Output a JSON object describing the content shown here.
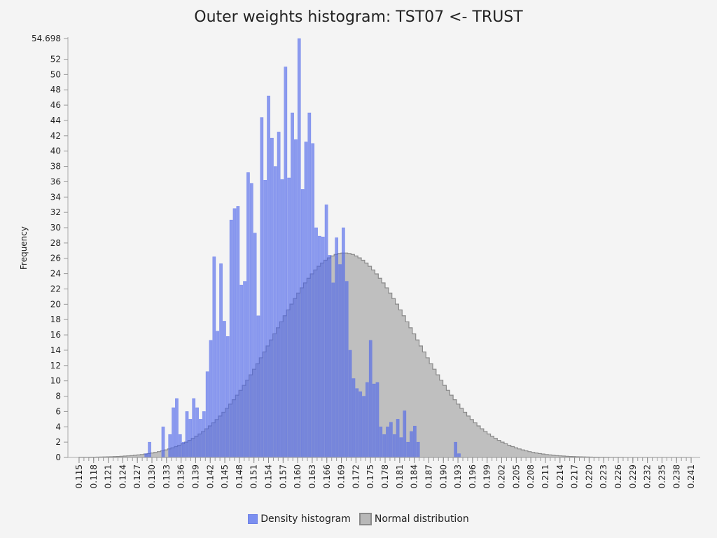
{
  "chart_data": {
    "type": "bar",
    "title": "Outer weights histogram: TST07 <- TRUST",
    "xlabel": "",
    "ylabel": "Frequency",
    "ylim": [
      0,
      54.698
    ],
    "xlim": [
      0.114,
      0.242
    ],
    "y_top_label": "54.698",
    "y_ticks": [
      0,
      2,
      4,
      6,
      8,
      10,
      12,
      14,
      16,
      18,
      20,
      22,
      24,
      26,
      28,
      30,
      32,
      34,
      36,
      38,
      40,
      42,
      44,
      46,
      48,
      50,
      52
    ],
    "x_tick_labels": [
      "0.115",
      "0.118",
      "0.121",
      "0.124",
      "0.127",
      "0.130",
      "0.133",
      "0.136",
      "0.139",
      "0.142",
      "0.145",
      "0.148",
      "0.151",
      "0.154",
      "0.157",
      "0.160",
      "0.163",
      "0.166",
      "0.169",
      "0.172",
      "0.175",
      "0.178",
      "0.181",
      "0.184",
      "0.187",
      "0.190",
      "0.193",
      "0.196",
      "0.199",
      "0.202",
      "0.205",
      "0.208",
      "0.211",
      "0.214",
      "0.217",
      "0.220",
      "0.223",
      "0.226",
      "0.229",
      "0.232",
      "0.235",
      "0.238",
      "0.241"
    ],
    "bin_start": 0.1285,
    "bin_width": 0.0007,
    "series": [
      {
        "name": "Density histogram",
        "color": "#7b8ff0",
        "values": [
          0.5,
          2,
          0,
          0,
          0,
          4,
          0,
          3,
          6.5,
          7.7,
          3,
          2,
          6,
          5,
          7.7,
          6.5,
          5,
          6,
          11.2,
          15.3,
          26.2,
          16.5,
          25.3,
          17.8,
          15.8,
          31,
          32.5,
          32.8,
          22.5,
          23,
          37.2,
          35.8,
          29.3,
          18.5,
          44.4,
          36.2,
          47.2,
          41.7,
          38,
          42.5,
          36.3,
          51,
          36.5,
          45,
          41.5,
          54.7,
          35,
          41.2,
          45,
          41,
          30,
          28.9,
          28.8,
          33,
          26.4,
          22.8,
          28.7,
          25.2,
          30,
          23,
          14,
          10.3,
          9,
          8.6,
          8,
          9.8,
          15.3,
          9.6,
          9.8,
          4,
          3,
          4,
          4.6,
          3,
          5,
          2.6,
          6.1,
          2,
          3.4,
          4.1,
          2,
          0,
          0,
          0,
          0,
          0,
          0,
          0,
          0,
          0,
          0,
          2,
          0.5,
          0,
          0
        ]
      },
      {
        "name": "Normal distribution",
        "color": "#b8b8b8",
        "x_range": [
          0.115,
          0.241
        ],
        "mean": 0.1696,
        "sd": 0.0143,
        "peak": 26.7
      }
    ],
    "legend_placement": "bottom-center",
    "grid": false
  }
}
